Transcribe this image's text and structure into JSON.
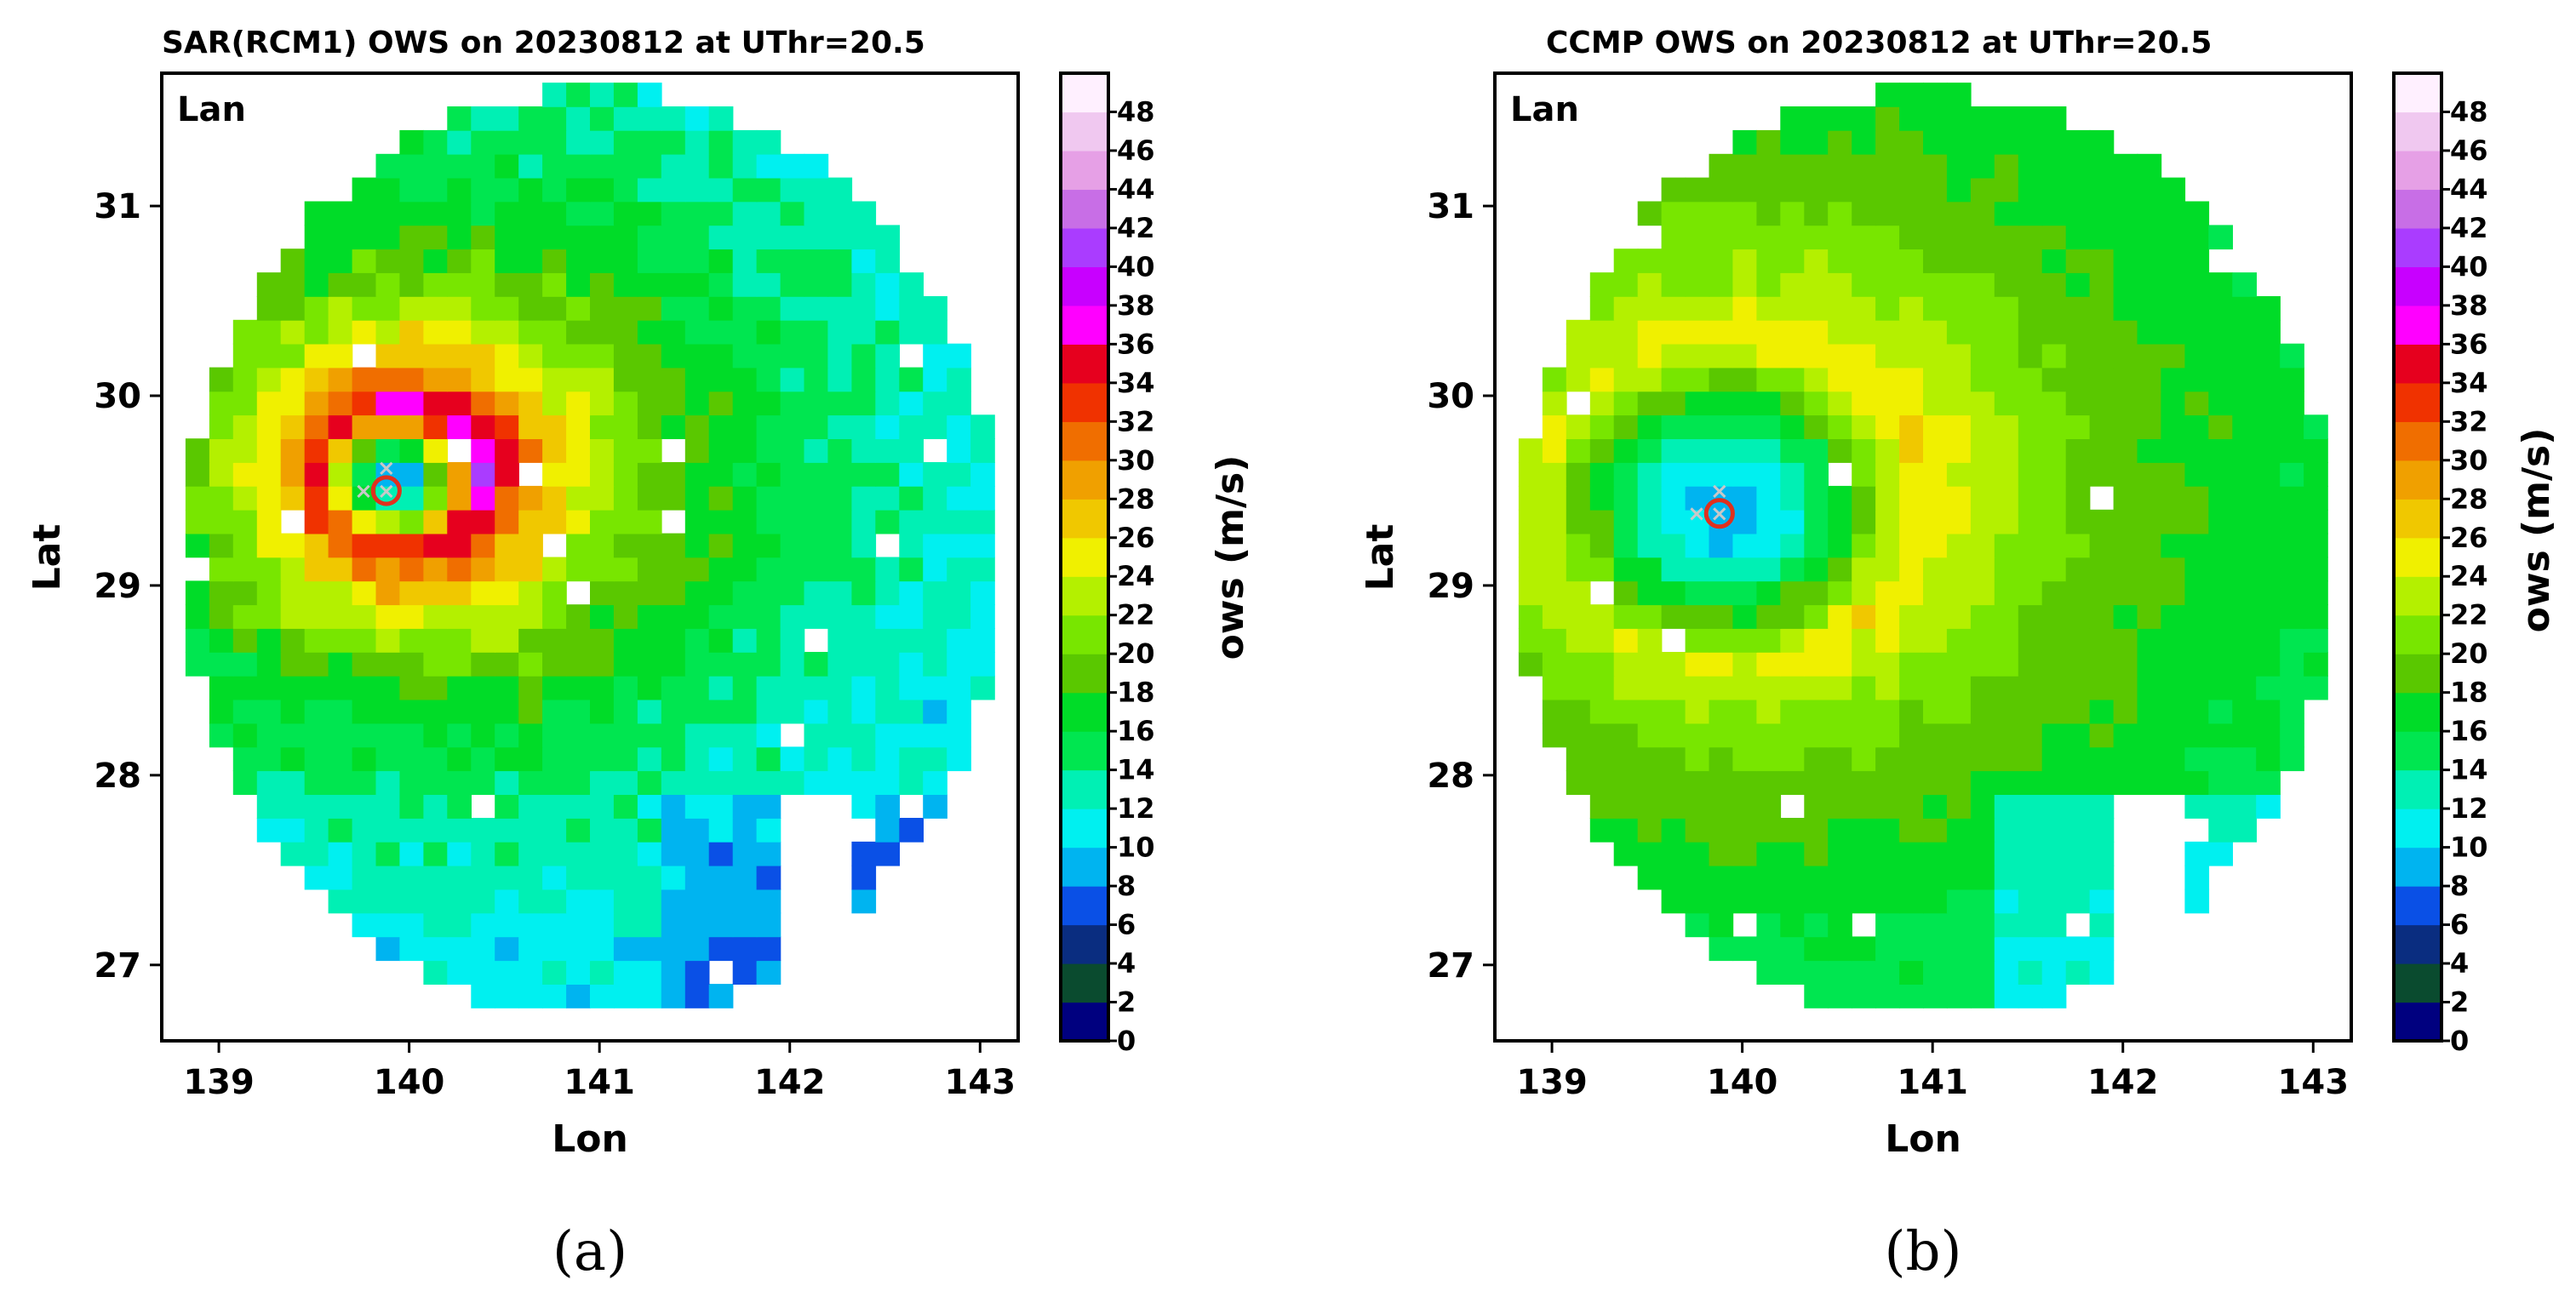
{
  "chart_data": [
    {
      "type": "heatmap",
      "panel_label": "(a)",
      "title": "SAR(RCM1) OWS on 20230812 at UThr=20.5",
      "annotation": "Lan",
      "xlabel": "Lon",
      "ylabel": "Lat",
      "colorbar_label": "ows (m/s)",
      "xlim": [
        138.7,
        143.2
      ],
      "ylim": [
        26.6,
        31.7
      ],
      "xticks": [
        139,
        140,
        141,
        142,
        143
      ],
      "yticks": [
        27,
        28,
        29,
        30,
        31
      ],
      "colorbar_range": [
        0,
        50
      ],
      "colorbar_ticks": [
        0,
        2,
        4,
        6,
        8,
        10,
        12,
        14,
        16,
        18,
        20,
        22,
        24,
        26,
        28,
        30,
        32,
        34,
        36,
        38,
        40,
        42,
        44,
        46,
        48
      ],
      "center": [
        139.88,
        29.5
      ],
      "rmax_deg": 0.38,
      "vmax": 37,
      "rmw_marker_radius_deg": 0.07
    },
    {
      "type": "heatmap",
      "panel_label": "(b)",
      "title": "CCMP OWS on 20230812 at UThr=20.5",
      "annotation": "Lan",
      "xlabel": "Lon",
      "ylabel": "Lat",
      "colorbar_label": "ows (m/s)",
      "xlim": [
        138.7,
        143.2
      ],
      "ylim": [
        26.6,
        31.7
      ],
      "xticks": [
        139,
        140,
        141,
        142,
        143
      ],
      "yticks": [
        27,
        28,
        29,
        30,
        31
      ],
      "colorbar_range": [
        0,
        50
      ],
      "colorbar_ticks": [
        0,
        2,
        4,
        6,
        8,
        10,
        12,
        14,
        16,
        18,
        20,
        22,
        24,
        26,
        28,
        30,
        32,
        34,
        36,
        38,
        40,
        42,
        44,
        46,
        48
      ],
      "center": [
        139.88,
        29.38
      ],
      "rmax_deg": 0.85,
      "vmax": 25,
      "rmw_marker_radius_deg": 0.07
    }
  ],
  "colormap": [
    "#00007f",
    "#0a4b2f",
    "#0a2d80",
    "#0a50e6",
    "#00b4f0",
    "#00f0f0",
    "#00f0b4",
    "#00e650",
    "#00dc28",
    "#5ac800",
    "#78e600",
    "#b4f000",
    "#f0f000",
    "#f0c800",
    "#f0a000",
    "#f06e00",
    "#f03200",
    "#e6001e",
    "#ff00ff",
    "#c800ff",
    "#aa3cff",
    "#c86ee6",
    "#e6a0e6",
    "#f0c8f0",
    "#fff0ff"
  ]
}
